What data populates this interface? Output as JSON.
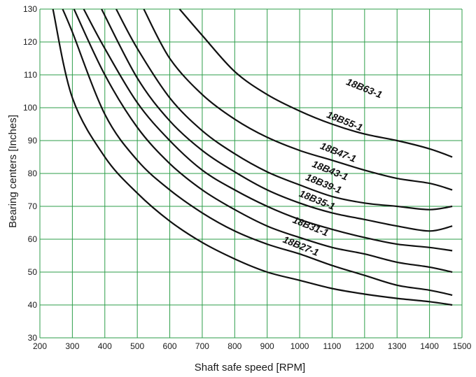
{
  "chart_data": {
    "type": "line",
    "title": "",
    "xlabel": "Shaft safe speed [RPM]",
    "ylabel": "Bearing centers [Inches]",
    "xlim": [
      200,
      1500
    ],
    "ylim": [
      30,
      130
    ],
    "x_ticks": [
      200,
      300,
      400,
      500,
      600,
      700,
      800,
      900,
      1000,
      1100,
      1200,
      1300,
      1400,
      1500
    ],
    "y_ticks": [
      30,
      40,
      50,
      60,
      70,
      80,
      90,
      100,
      110,
      120,
      130
    ],
    "grid": true,
    "grid_color": "#2e9e4a",
    "line_color": "#111111",
    "series": [
      {
        "name": "18B27-1",
        "points": [
          [
            240,
            130
          ],
          [
            300,
            103
          ],
          [
            400,
            85
          ],
          [
            500,
            74
          ],
          [
            600,
            65.5
          ],
          [
            700,
            59
          ],
          [
            800,
            54
          ],
          [
            900,
            50
          ],
          [
            1000,
            47.5
          ],
          [
            1100,
            45
          ],
          [
            1200,
            43.3
          ],
          [
            1300,
            42
          ],
          [
            1400,
            41
          ],
          [
            1470,
            40
          ]
        ]
      },
      {
        "name": "18B31-1",
        "points": [
          [
            270,
            130
          ],
          [
            300,
            123
          ],
          [
            400,
            98
          ],
          [
            500,
            84
          ],
          [
            600,
            75
          ],
          [
            700,
            68
          ],
          [
            800,
            62.5
          ],
          [
            900,
            58.5
          ],
          [
            1000,
            55.5
          ],
          [
            1100,
            52
          ],
          [
            1200,
            49
          ],
          [
            1300,
            46
          ],
          [
            1400,
            44.5
          ],
          [
            1470,
            43
          ]
        ]
      },
      {
        "name": "18B35-1",
        "points": [
          [
            305,
            130
          ],
          [
            400,
            110
          ],
          [
            500,
            94
          ],
          [
            600,
            83
          ],
          [
            700,
            75
          ],
          [
            800,
            69
          ],
          [
            900,
            64
          ],
          [
            1000,
            60.5
          ],
          [
            1100,
            57.5
          ],
          [
            1200,
            55.5
          ],
          [
            1300,
            53
          ],
          [
            1400,
            51.5
          ],
          [
            1470,
            50
          ]
        ]
      },
      {
        "name": "18B39-1",
        "points": [
          [
            335,
            130
          ],
          [
            400,
            118
          ],
          [
            500,
            101.5
          ],
          [
            600,
            90
          ],
          [
            700,
            81
          ],
          [
            800,
            75
          ],
          [
            900,
            70
          ],
          [
            1000,
            66
          ],
          [
            1100,
            63
          ],
          [
            1200,
            60.5
          ],
          [
            1300,
            58.5
          ],
          [
            1400,
            57.5
          ],
          [
            1470,
            56.5
          ]
        ]
      },
      {
        "name": "18B43-1",
        "points": [
          [
            390,
            130
          ],
          [
            500,
            109
          ],
          [
            600,
            96
          ],
          [
            700,
            87
          ],
          [
            800,
            80.5
          ],
          [
            900,
            75
          ],
          [
            1000,
            71
          ],
          [
            1100,
            68
          ],
          [
            1200,
            66
          ],
          [
            1300,
            64
          ],
          [
            1400,
            62.5
          ],
          [
            1470,
            64
          ]
        ]
      },
      {
        "name": "18B47-1",
        "points": [
          [
            435,
            130
          ],
          [
            500,
            118
          ],
          [
            600,
            103
          ],
          [
            700,
            93
          ],
          [
            800,
            86
          ],
          [
            900,
            80.5
          ],
          [
            1000,
            76.5
          ],
          [
            1100,
            73
          ],
          [
            1200,
            71
          ],
          [
            1300,
            70
          ],
          [
            1400,
            69
          ],
          [
            1470,
            70
          ]
        ]
      },
      {
        "name": "18B55-1",
        "points": [
          [
            520,
            130
          ],
          [
            600,
            115
          ],
          [
            700,
            104
          ],
          [
            800,
            96.5
          ],
          [
            900,
            91
          ],
          [
            1000,
            87
          ],
          [
            1100,
            84
          ],
          [
            1200,
            81
          ],
          [
            1300,
            78.5
          ],
          [
            1400,
            77
          ],
          [
            1470,
            75
          ]
        ]
      },
      {
        "name": "18B63-1",
        "points": [
          [
            630,
            130
          ],
          [
            700,
            122
          ],
          [
            800,
            111
          ],
          [
            900,
            104
          ],
          [
            1000,
            99
          ],
          [
            1100,
            95
          ],
          [
            1200,
            92
          ],
          [
            1300,
            90
          ],
          [
            1400,
            87.5
          ],
          [
            1470,
            85
          ]
        ]
      }
    ],
    "annotations": [
      {
        "text": "18B63-1",
        "x": 1195,
        "y": 105
      },
      {
        "text": "18B55-1",
        "x": 1135,
        "y": 95
      },
      {
        "text": "18B47-1",
        "x": 1115,
        "y": 85.5
      },
      {
        "text": "18B43-1",
        "x": 1090,
        "y": 80
      },
      {
        "text": "18B39-1",
        "x": 1070,
        "y": 76
      },
      {
        "text": "18B35-1",
        "x": 1050,
        "y": 71
      },
      {
        "text": "18B31-1",
        "x": 1030,
        "y": 63
      },
      {
        "text": "18B27-1",
        "x": 1000,
        "y": 57
      }
    ]
  }
}
